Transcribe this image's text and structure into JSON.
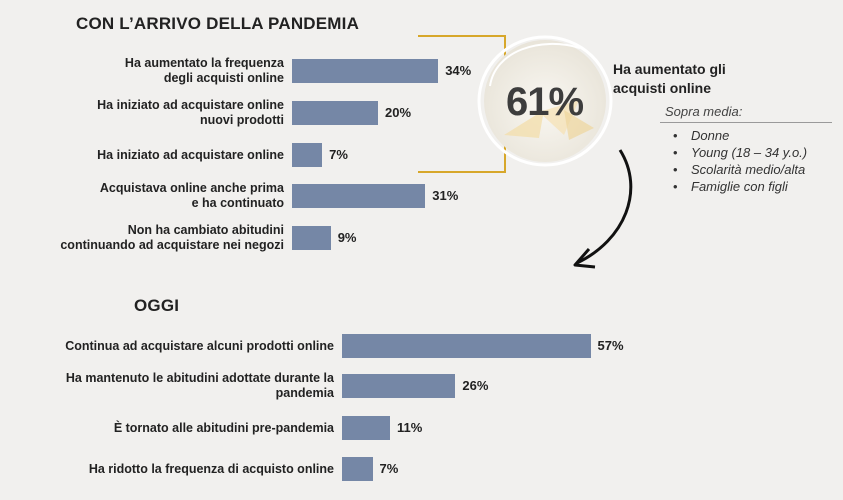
{
  "chart_data": [
    {
      "type": "bar",
      "title": "CON L’ARRIVO DELLA PANDEMIA",
      "categories": [
        [
          "Ha aumentato la frequenza",
          "degli acquisti online"
        ],
        [
          "Ha iniziato ad acquistare online",
          "nuovi prodotti"
        ],
        [
          "Ha iniziato ad acquistare online"
        ],
        [
          "Acquistava online anche prima",
          "e ha continuato"
        ],
        [
          "Non ha cambiato abitudini",
          "continuando ad acquistare nei negozi"
        ]
      ],
      "values": [
        34,
        20,
        7,
        31,
        9
      ],
      "value_labels": [
        "34%",
        "20%",
        "7%",
        "31%",
        "9%"
      ],
      "orientation": "horizontal"
    },
    {
      "type": "bar",
      "title": "OGGI",
      "categories": [
        [
          "Continua ad acquistare alcuni prodotti online"
        ],
        [
          "Ha mantenuto le abitudini adottate durante la",
          "pandemia"
        ],
        [
          "È tornato alle abitudini pre-pandemia"
        ],
        [
          "Ha ridotto la frequenza di acquisto online"
        ]
      ],
      "values": [
        57,
        26,
        11,
        7
      ],
      "value_labels": [
        "57%",
        "26%",
        "11%",
        "7%"
      ],
      "orientation": "horizontal"
    }
  ],
  "callout": {
    "value": "61%",
    "title_lines": [
      "Ha aumentato gli",
      "acquisti online"
    ],
    "subtitle": "Sopra media:",
    "items": [
      "Donne",
      "Young (18 – 34 y.o.)",
      "Scolarità medio/alta",
      "Famiglie con figli"
    ]
  },
  "colors": {
    "bar": "#7587a6",
    "bracket": "#d7a72a",
    "background": "#f1f0ee"
  }
}
